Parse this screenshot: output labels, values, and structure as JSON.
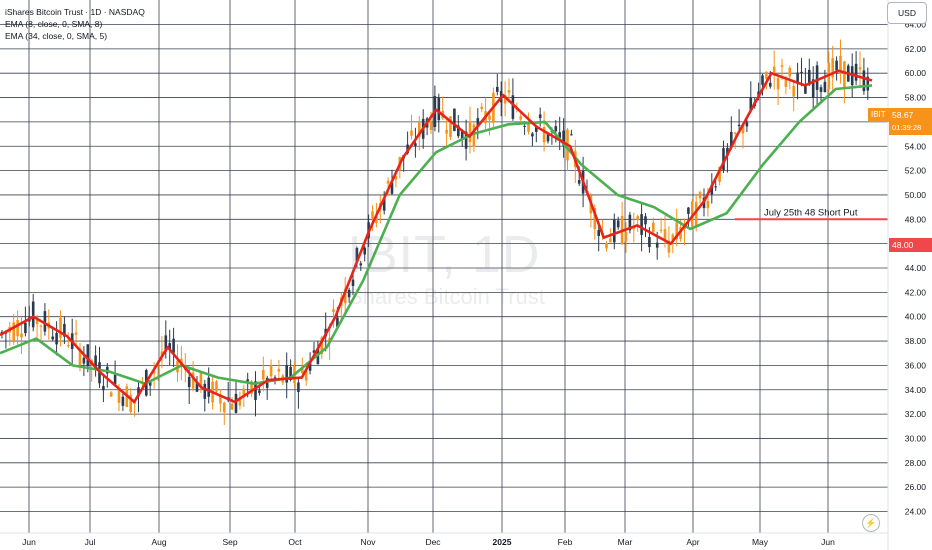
{
  "legend": {
    "title": "iShares Bitcoin Trust · 1D · NASDAQ",
    "ema_fast": "EMA (8, close, 0, SMA, 8)",
    "ema_slow": "EMA (34, close, 0, SMA, 5)"
  },
  "currency_button": "USD",
  "watermark": {
    "ticker": "IBIT, 1D",
    "name": "iShares Bitcoin Trust"
  },
  "price_axis": {
    "labels": [
      "64.00",
      "62.00",
      "60.00",
      "58.00",
      "56.00",
      "54.00",
      "52.00",
      "50.00",
      "48.00",
      "46.00",
      "44.00",
      "42.00",
      "40.00",
      "38.00",
      "36.00",
      "34.00",
      "32.00",
      "30.00",
      "28.00",
      "26.00",
      "24.00"
    ],
    "current_price": "58.67",
    "countdown": "01:39:28",
    "current_symbol": "IBIT",
    "level_label": "48.00"
  },
  "time_axis": {
    "labels": [
      "Jun",
      "Jul",
      "Aug",
      "Sep",
      "Oct",
      "Nov",
      "Dec",
      "2025",
      "Feb",
      "Mar",
      "Apr",
      "May",
      "Jun"
    ]
  },
  "annotation": {
    "text": "July 25th 48 Short Put",
    "price": 48
  },
  "colors": {
    "up": "#2a3a4f",
    "down": "#f7931a",
    "ema_fast": "#e5251c",
    "ema_slow": "#4caf50",
    "level": "#f0474a",
    "price_tag": "#f7931a"
  },
  "chart_data": {
    "type": "candlestick",
    "symbol": "IBIT",
    "interval": "1D",
    "y_range": [
      24,
      66
    ],
    "series": [
      {
        "name": "EMA (8, close, 0, SMA, 8)",
        "values": [
          38.5,
          40.0,
          38.4,
          35.4,
          33.0,
          37.5,
          34.2,
          33.0,
          34.8,
          35.0,
          40.0,
          47.0,
          53.0,
          57.0,
          54.8,
          58.2,
          55.6,
          54.0,
          46.5,
          47.5,
          46.0,
          49.5,
          55.0,
          60.0,
          59.0,
          60.2,
          59.4
        ]
      },
      {
        "name": "EMA (34, close, 0, SMA, 5)",
        "values": [
          37.0,
          38.2,
          36.0,
          35.5,
          34.5,
          36.0,
          35.0,
          34.5,
          35.0,
          37.5,
          43.0,
          50.0,
          53.5,
          55.0,
          55.8,
          56.0,
          52.5,
          50.0,
          49.0,
          47.2,
          48.5,
          52.5,
          56.0,
          58.7,
          59.0
        ]
      },
      {
        "name": "Level",
        "values": [
          48
        ]
      }
    ]
  }
}
